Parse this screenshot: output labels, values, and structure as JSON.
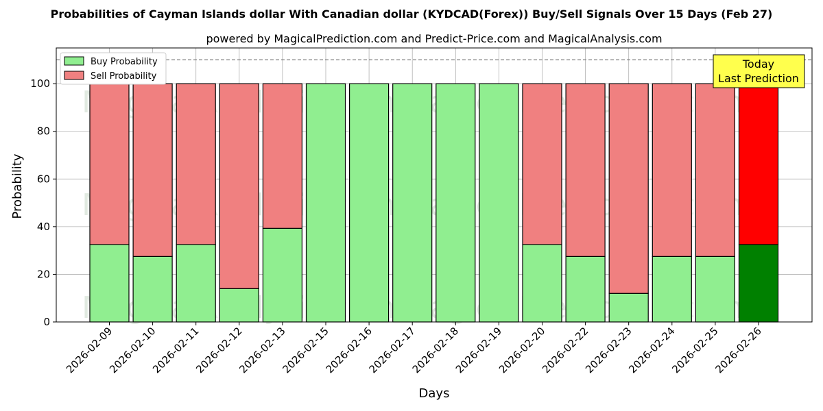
{
  "chart_data": {
    "type": "bar",
    "stacked": true,
    "title": "Probabilities of Cayman Islands dollar With Canadian dollar (KYDCAD(Forex)) Buy/Sell Signals Over 15 Days (Feb 27)",
    "subtitle": "powered by MagicalPrediction.com and Predict-Price.com and MagicalAnalysis.com",
    "xlabel": "Days",
    "ylabel": "Probability",
    "ylim": [
      0,
      115
    ],
    "yticks": [
      0,
      20,
      40,
      60,
      80,
      100
    ],
    "grid": true,
    "reference_line": 110,
    "categories": [
      "2026-02-09",
      "2026-02-10",
      "2026-02-11",
      "2026-02-12",
      "2026-02-13",
      "2026-02-15",
      "2026-02-16",
      "2026-02-17",
      "2026-02-18",
      "2026-02-19",
      "2026-02-20",
      "2026-02-22",
      "2026-02-23",
      "2026-02-24",
      "2026-02-25",
      "2026-02-26"
    ],
    "series": [
      {
        "name": "Buy Probability",
        "color": "#90ee90",
        "highlight_color": "#008000",
        "values": [
          32.5,
          27.5,
          32.5,
          14,
          39.3,
          100,
          100,
          100,
          100,
          100,
          32.5,
          27.5,
          12,
          27.5,
          27.5,
          32.5
        ]
      },
      {
        "name": "Sell Probability",
        "color": "#f08080",
        "highlight_color": "#ff0000",
        "values": [
          67.5,
          72.5,
          67.5,
          86,
          60.7,
          0,
          0,
          0,
          0,
          0,
          67.5,
          72.5,
          88,
          72.5,
          72.5,
          67.5
        ]
      }
    ],
    "highlight_index": 15,
    "legend_position": "top-left",
    "annotation": {
      "lines": [
        "Today",
        "Last Prediction"
      ],
      "background": "#ffff4d"
    },
    "watermarks": [
      "MagicalAnalysis.com",
      "MagicalPrediction.com"
    ]
  }
}
